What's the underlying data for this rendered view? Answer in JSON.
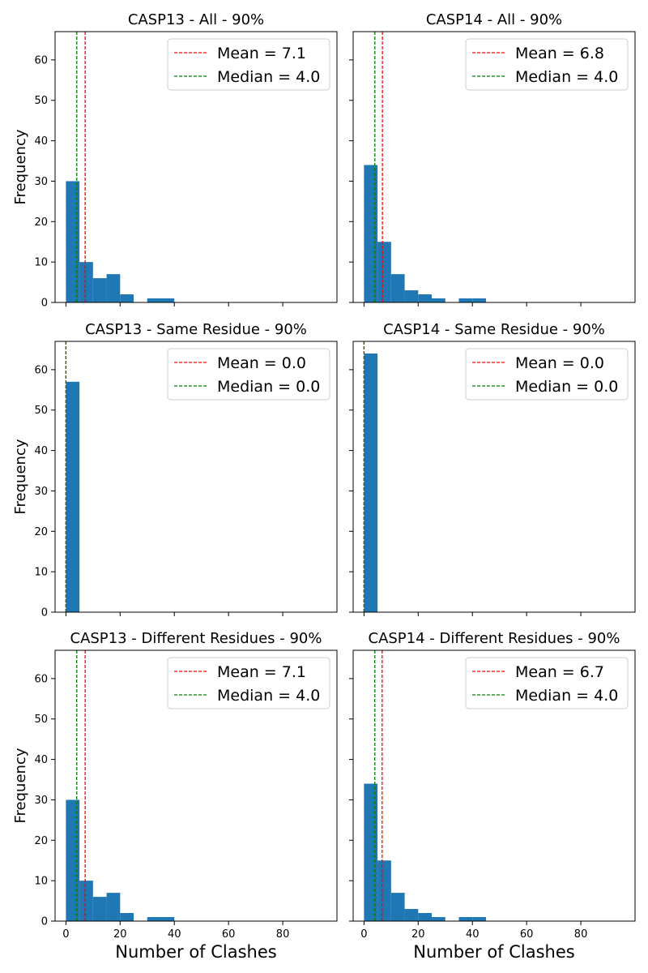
{
  "chart_data": [
    {
      "type": "bar",
      "title": "CASP13 - All - 90%",
      "ylabel": "Frequency",
      "xlabel": "",
      "bin_edges": [
        0,
        5,
        10,
        15,
        20,
        25,
        30,
        35,
        40
      ],
      "values": [
        30,
        10,
        6,
        7,
        2,
        0,
        1,
        1
      ],
      "mean_label": "Mean = 7.1",
      "median_label": "Median = 4.0",
      "mean": 7.1,
      "median": 4.0,
      "xlim": [
        -4,
        100
      ],
      "ylim": [
        0,
        67
      ],
      "xticks": [
        0,
        20,
        40,
        60,
        80
      ],
      "yticks": [
        0,
        10,
        20,
        30,
        40,
        50,
        60
      ],
      "show_xtick_labels": false,
      "show_ytick_labels": true,
      "legend": "top-right",
      "grid": false
    },
    {
      "type": "bar",
      "title": "CASP14 - All - 90%",
      "ylabel": "",
      "xlabel": "",
      "bin_edges": [
        0,
        5,
        10,
        15,
        20,
        25,
        30,
        35,
        40,
        45
      ],
      "values": [
        34,
        15,
        7,
        3,
        2,
        1,
        0,
        1,
        1
      ],
      "mean_label": "Mean = 6.8",
      "median_label": "Median = 4.0",
      "mean": 6.8,
      "median": 4.0,
      "xlim": [
        -4,
        100
      ],
      "ylim": [
        0,
        67
      ],
      "xticks": [
        0,
        20,
        40,
        60,
        80
      ],
      "yticks": [
        0,
        10,
        20,
        30,
        40,
        50,
        60
      ],
      "show_xtick_labels": false,
      "show_ytick_labels": false,
      "legend": "top-right",
      "grid": false
    },
    {
      "type": "bar",
      "title": "CASP13 - Same Residue - 90%",
      "ylabel": "Frequency",
      "xlabel": "",
      "bin_edges": [
        0,
        5
      ],
      "values": [
        57
      ],
      "mean_label": "Mean = 0.0",
      "median_label": "Median = 0.0",
      "mean": 0.0,
      "median": 0.0,
      "xlim": [
        -4,
        100
      ],
      "ylim": [
        0,
        67
      ],
      "xticks": [
        0,
        20,
        40,
        60,
        80
      ],
      "yticks": [
        0,
        10,
        20,
        30,
        40,
        50,
        60
      ],
      "show_xtick_labels": false,
      "show_ytick_labels": true,
      "legend": "top-right",
      "grid": false
    },
    {
      "type": "bar",
      "title": "CASP14 - Same Residue - 90%",
      "ylabel": "",
      "xlabel": "",
      "bin_edges": [
        0,
        5
      ],
      "values": [
        64
      ],
      "mean_label": "Mean = 0.0",
      "median_label": "Median = 0.0",
      "mean": 0.0,
      "median": 0.0,
      "xlim": [
        -4,
        100
      ],
      "ylim": [
        0,
        67
      ],
      "xticks": [
        0,
        20,
        40,
        60,
        80
      ],
      "yticks": [
        0,
        10,
        20,
        30,
        40,
        50,
        60
      ],
      "show_xtick_labels": false,
      "show_ytick_labels": false,
      "legend": "top-right",
      "grid": false
    },
    {
      "type": "bar",
      "title": "CASP13 - Different Residues - 90%",
      "ylabel": "Frequency",
      "xlabel": "Number of Clashes",
      "bin_edges": [
        0,
        5,
        10,
        15,
        20,
        25,
        30,
        35,
        40
      ],
      "values": [
        30,
        10,
        6,
        7,
        2,
        0,
        1,
        1
      ],
      "mean_label": "Mean = 7.1",
      "median_label": "Median = 4.0",
      "mean": 7.1,
      "median": 4.0,
      "xlim": [
        -4,
        100
      ],
      "ylim": [
        0,
        67
      ],
      "xticks": [
        0,
        20,
        40,
        60,
        80
      ],
      "yticks": [
        0,
        10,
        20,
        30,
        40,
        50,
        60
      ],
      "show_xtick_labels": true,
      "show_ytick_labels": true,
      "legend": "top-right",
      "grid": false
    },
    {
      "type": "bar",
      "title": "CASP14 - Different Residues - 90%",
      "ylabel": "",
      "xlabel": "Number of Clashes",
      "bin_edges": [
        0,
        5,
        10,
        15,
        20,
        25,
        30,
        35,
        40,
        45
      ],
      "values": [
        34,
        15,
        7,
        3,
        2,
        1,
        0,
        1,
        1
      ],
      "mean_label": "Mean = 6.7",
      "median_label": "Median = 4.0",
      "mean": 6.7,
      "median": 4.0,
      "xlim": [
        -4,
        100
      ],
      "ylim": [
        0,
        67
      ],
      "xticks": [
        0,
        20,
        40,
        60,
        80
      ],
      "yticks": [
        0,
        10,
        20,
        30,
        40,
        50,
        60
      ],
      "show_xtick_labels": true,
      "show_ytick_labels": false,
      "legend": "top-right",
      "grid": false
    }
  ],
  "colors": {
    "bar": "#1f77b4",
    "mean_line": "#ff0000",
    "median_line": "#008000",
    "axis": "#000000",
    "legend_border": "#cccccc"
  }
}
